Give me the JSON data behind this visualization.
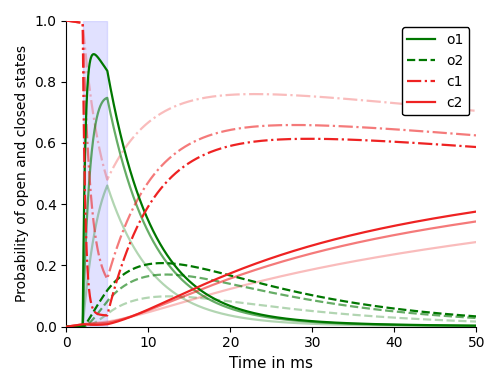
{
  "title": "",
  "xlabel": "Time in ms",
  "ylabel": "Probability of open and closed states",
  "xlim": [
    0,
    50
  ],
  "ylim": [
    0,
    1.0
  ],
  "light_on": 2,
  "light_off": 5,
  "light_color": "#aaaaff",
  "light_alpha": 0.35,
  "background_color": "#ffffff",
  "intensities": [
    {
      "alpha": 0.3
    },
    {
      "alpha": 0.6
    },
    {
      "alpha": 1.0
    }
  ],
  "intensity_params": [
    {
      "Ga1": 0.3,
      "Ga2": 0.05,
      "Gd1": 0.13,
      "Gd2": 0.05,
      "e12": 0.05,
      "e21": 0.012,
      "Gr": 0.004
    },
    {
      "Ga1": 0.9,
      "Ga2": 0.15,
      "Gd1": 0.13,
      "Gd2": 0.05,
      "e12": 0.05,
      "e21": 0.012,
      "Gr": 0.004
    },
    {
      "Ga1": 3.0,
      "Ga2": 0.5,
      "Gd1": 0.13,
      "Gd2": 0.05,
      "e12": 0.05,
      "e21": 0.012,
      "Gr": 0.004
    }
  ],
  "o1_color": "#007700",
  "o2_color": "#007700",
  "c1_color": "#ee2222",
  "c2_color": "#ee2222",
  "o1_linestyle": "-",
  "o2_linestyle": "--",
  "c1_linestyle": "-.",
  "c2_linestyle": "-",
  "linewidth": 1.6,
  "legend_loc": "upper right",
  "legend_fontsize": 10
}
